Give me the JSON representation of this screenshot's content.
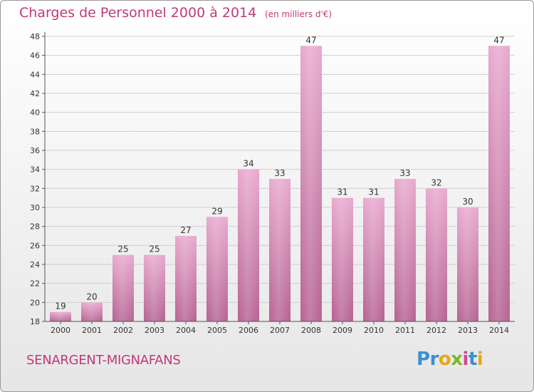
{
  "header": {
    "title": "Charges de Personnel 2000 à 2014",
    "subtitle": "(en milliers d'€)"
  },
  "footer": {
    "commune": "SENARGENT-MIGNAFANS",
    "logo_text": "Proxiti"
  },
  "colors": {
    "title": "#c03a78",
    "bar_top": "#e8a9ce",
    "bar_bottom": "#b56392",
    "grid": "#cfcfcf",
    "axis": "#555555"
  },
  "chart_data": {
    "type": "bar",
    "categories": [
      "2000",
      "2001",
      "2002",
      "2003",
      "2004",
      "2005",
      "2006",
      "2007",
      "2008",
      "2009",
      "2010",
      "2011",
      "2012",
      "2013",
      "2014"
    ],
    "values": [
      19,
      20,
      25,
      25,
      27,
      29,
      34,
      33,
      47,
      31,
      31,
      33,
      32,
      30,
      47
    ],
    "title": "Charges de Personnel 2000 à 2014",
    "subtitle": "(en milliers d'€)",
    "xlabel": "",
    "ylabel": "",
    "ylim": [
      18,
      48
    ],
    "yticks": [
      18,
      20,
      22,
      24,
      26,
      28,
      30,
      32,
      34,
      36,
      38,
      40,
      42,
      44,
      46,
      48
    ],
    "grid": true,
    "data_labels": true
  }
}
